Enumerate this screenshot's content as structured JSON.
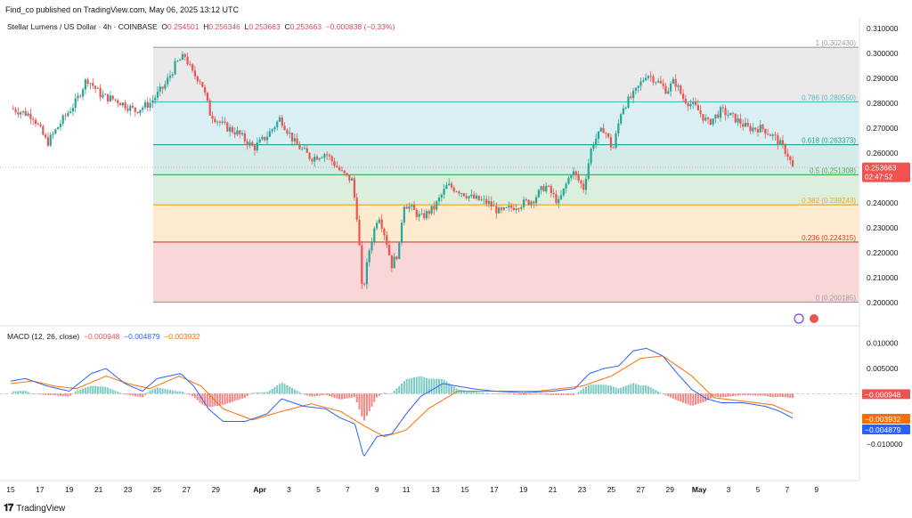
{
  "header": {
    "published": "Find_co published on TradingView.com, May 06, 2025 13:12 UTC",
    "symbol": "Stellar Lumens / US Dollar · 4h · COINBASE",
    "open_label": "O",
    "open": "0.254501",
    "high_label": "H",
    "high": "0.256346",
    "low_label": "L",
    "low": "0.253663",
    "close_label": "C",
    "close": "0.253663",
    "change": "−0.000838 (−0.33%)"
  },
  "macd_legend": {
    "name": "MACD (12, 26, close)",
    "hist": "−0.000948",
    "macd": "−0.004879",
    "signal": "−0.003932"
  },
  "footer": {
    "logo": "𝟏𝟕",
    "brand": "TradingView"
  },
  "colors": {
    "up": "#26a69a",
    "down": "#ef5350",
    "macd": "#2962ff",
    "signal": "#ff6d00",
    "fib1": "#9e9e9e",
    "fib786": "#56b7c9",
    "fib618": "#2a9d8f",
    "fib5": "#4caf50",
    "fib382": "#f5a623",
    "fib236": "#e53935",
    "fib0": "#9e9e9e"
  },
  "chart_data": [
    {
      "type": "candlestick",
      "title": "Stellar Lumens / US Dollar · 4h · COINBASE",
      "ylim": [
        0.2,
        0.31
      ],
      "y_ticks": [
        "0.310000",
        "0.300000",
        "0.290000",
        "0.280000",
        "0.270000",
        "0.260000",
        "0.250000",
        "0.240000",
        "0.230000",
        "0.220000",
        "0.210000",
        "0.200000"
      ],
      "x_ticks": [
        "15",
        "17",
        "19",
        "21",
        "23",
        "25",
        "27",
        "29",
        "Apr",
        "3",
        "5",
        "7",
        "9",
        "11",
        "13",
        "15",
        "17",
        "19",
        "21",
        "23",
        "25",
        "27",
        "29",
        "May",
        "3",
        "5",
        "7",
        "9"
      ],
      "last_price_label": "0.253663",
      "countdown_label": "02:47:52",
      "fib_levels": [
        {
          "ratio": "1",
          "value": 0.30243,
          "label": "1 (0.302430)"
        },
        {
          "ratio": "0.786",
          "value": 0.28055,
          "label": "0.786 (0.280550)"
        },
        {
          "ratio": "0.618",
          "value": 0.263373,
          "label": "0.618 (0.263373)"
        },
        {
          "ratio": "0.5",
          "value": 0.251308,
          "label": "0.5 (0.251308)"
        },
        {
          "ratio": "0.382",
          "value": 0.239243,
          "label": "0.382 (0.239243)"
        },
        {
          "ratio": "0.236",
          "value": 0.224315,
          "label": "0.236 (0.224315)"
        },
        {
          "ratio": "0",
          "value": 0.200185,
          "label": "0 (0.200185)"
        }
      ],
      "price_path": [
        {
          "x": 0,
          "p": 0.278
        },
        {
          "x": 1.5,
          "p": 0.275
        },
        {
          "x": 2.5,
          "p": 0.264
        },
        {
          "x": 3.5,
          "p": 0.273
        },
        {
          "x": 4.5,
          "p": 0.281
        },
        {
          "x": 5.2,
          "p": 0.29
        },
        {
          "x": 6.2,
          "p": 0.283
        },
        {
          "x": 7.3,
          "p": 0.281
        },
        {
          "x": 8.5,
          "p": 0.277
        },
        {
          "x": 9.5,
          "p": 0.28
        },
        {
          "x": 10.5,
          "p": 0.287
        },
        {
          "x": 11.3,
          "p": 0.296
        },
        {
          "x": 11.9,
          "p": 0.299
        },
        {
          "x": 12.4,
          "p": 0.292
        },
        {
          "x": 13,
          "p": 0.289
        },
        {
          "x": 13.6,
          "p": 0.276
        },
        {
          "x": 14.5,
          "p": 0.271
        },
        {
          "x": 15.5,
          "p": 0.268
        },
        {
          "x": 16.6,
          "p": 0.262
        },
        {
          "x": 17.5,
          "p": 0.267
        },
        {
          "x": 18.4,
          "p": 0.274
        },
        {
          "x": 19.4,
          "p": 0.264
        },
        {
          "x": 20.5,
          "p": 0.258
        },
        {
          "x": 21.5,
          "p": 0.26
        },
        {
          "x": 22.6,
          "p": 0.252
        },
        {
          "x": 23.3,
          "p": 0.249
        },
        {
          "x": 23.7,
          "p": 0.232
        },
        {
          "x": 24,
          "p": 0.203
        },
        {
          "x": 24.5,
          "p": 0.222
        },
        {
          "x": 25.1,
          "p": 0.236
        },
        {
          "x": 25.6,
          "p": 0.226
        },
        {
          "x": 26,
          "p": 0.215
        },
        {
          "x": 26.5,
          "p": 0.221
        },
        {
          "x": 26.8,
          "p": 0.24
        },
        {
          "x": 27.3,
          "p": 0.238
        },
        {
          "x": 28,
          "p": 0.234
        },
        {
          "x": 28.9,
          "p": 0.238
        },
        {
          "x": 29.8,
          "p": 0.247
        },
        {
          "x": 30.6,
          "p": 0.245
        },
        {
          "x": 31.5,
          "p": 0.242
        },
        {
          "x": 32.6,
          "p": 0.24
        },
        {
          "x": 33.4,
          "p": 0.236
        },
        {
          "x": 34.5,
          "p": 0.239
        },
        {
          "x": 35.6,
          "p": 0.241
        },
        {
          "x": 36.5,
          "p": 0.247
        },
        {
          "x": 37.4,
          "p": 0.24
        },
        {
          "x": 38.3,
          "p": 0.253
        },
        {
          "x": 39.1,
          "p": 0.246
        },
        {
          "x": 39.7,
          "p": 0.264
        },
        {
          "x": 40.5,
          "p": 0.27
        },
        {
          "x": 41.1,
          "p": 0.261
        },
        {
          "x": 41.7,
          "p": 0.278
        },
        {
          "x": 42.6,
          "p": 0.284
        },
        {
          "x": 43.4,
          "p": 0.292
        },
        {
          "x": 44.1,
          "p": 0.289
        },
        {
          "x": 44.8,
          "p": 0.285
        },
        {
          "x": 45.3,
          "p": 0.289
        },
        {
          "x": 45.9,
          "p": 0.282
        },
        {
          "x": 46.8,
          "p": 0.278
        },
        {
          "x": 47.6,
          "p": 0.272
        },
        {
          "x": 48.5,
          "p": 0.277
        },
        {
          "x": 49.4,
          "p": 0.274
        },
        {
          "x": 50.3,
          "p": 0.27
        },
        {
          "x": 51.3,
          "p": 0.27
        },
        {
          "x": 52.2,
          "p": 0.266
        },
        {
          "x": 53,
          "p": 0.26
        },
        {
          "x": 53.4,
          "p": 0.2537
        }
      ]
    },
    {
      "type": "macd",
      "title": "MACD (12, 26, close)",
      "ylim": [
        -0.013,
        0.011
      ],
      "y_ticks": [
        "0.010000",
        "0.005000",
        "0.000000",
        "−0.010000"
      ],
      "value_labels": [
        "−0.000948",
        "−0.003932",
        "−0.004879"
      ],
      "macd_path": [
        {
          "x": 0,
          "v": 0.0025
        },
        {
          "x": 1,
          "v": 0.003
        },
        {
          "x": 2.5,
          "v": 0.0015
        },
        {
          "x": 4,
          "v": 0.0005
        },
        {
          "x": 5.5,
          "v": 0.004
        },
        {
          "x": 6.5,
          "v": 0.005
        },
        {
          "x": 7.8,
          "v": 0.002
        },
        {
          "x": 9,
          "v": 0.0005
        },
        {
          "x": 10,
          "v": 0.003
        },
        {
          "x": 11.6,
          "v": 0.004
        },
        {
          "x": 12.5,
          "v": 0.0015
        },
        {
          "x": 13.5,
          "v": -0.003
        },
        {
          "x": 14.5,
          "v": -0.0055
        },
        {
          "x": 16,
          "v": -0.0055
        },
        {
          "x": 17.5,
          "v": -0.004
        },
        {
          "x": 18.5,
          "v": -0.001
        },
        {
          "x": 20,
          "v": -0.0025
        },
        {
          "x": 21.5,
          "v": -0.003
        },
        {
          "x": 22.5,
          "v": -0.0048
        },
        {
          "x": 23.5,
          "v": -0.006
        },
        {
          "x": 24.1,
          "v": -0.0125
        },
        {
          "x": 25,
          "v": -0.0085
        },
        {
          "x": 26,
          "v": -0.008
        },
        {
          "x": 27,
          "v": -0.004
        },
        {
          "x": 28,
          "v": -0.0005
        },
        {
          "x": 29.5,
          "v": 0.002
        },
        {
          "x": 31.5,
          "v": 0.001
        },
        {
          "x": 33,
          "v": 0.0005
        },
        {
          "x": 35,
          "v": 0.0002
        },
        {
          "x": 37,
          "v": 0.0005
        },
        {
          "x": 38.5,
          "v": 0.001
        },
        {
          "x": 39.5,
          "v": 0.004
        },
        {
          "x": 40.5,
          "v": 0.005
        },
        {
          "x": 41.5,
          "v": 0.0055
        },
        {
          "x": 42.5,
          "v": 0.0085
        },
        {
          "x": 43.4,
          "v": 0.009
        },
        {
          "x": 44.5,
          "v": 0.0075
        },
        {
          "x": 45.5,
          "v": 0.004
        },
        {
          "x": 46.5,
          "v": 0.0008
        },
        {
          "x": 47.5,
          "v": -0.001
        },
        {
          "x": 48.5,
          "v": -0.0018
        },
        {
          "x": 50,
          "v": -0.0018
        },
        {
          "x": 51.5,
          "v": -0.0025
        },
        {
          "x": 52.5,
          "v": -0.0035
        },
        {
          "x": 53.4,
          "v": -0.004879
        }
      ],
      "signal_path": [
        {
          "x": 0,
          "v": 0.002
        },
        {
          "x": 1.5,
          "v": 0.0025
        },
        {
          "x": 3,
          "v": 0.0015
        },
        {
          "x": 4.5,
          "v": 0.001
        },
        {
          "x": 6.5,
          "v": 0.0035
        },
        {
          "x": 8,
          "v": 0.002
        },
        {
          "x": 9.5,
          "v": 0.001
        },
        {
          "x": 11.5,
          "v": 0.0035
        },
        {
          "x": 13,
          "v": 0.0015
        },
        {
          "x": 14.5,
          "v": -0.003
        },
        {
          "x": 16.5,
          "v": -0.0052
        },
        {
          "x": 18.5,
          "v": -0.0035
        },
        {
          "x": 20.5,
          "v": -0.002
        },
        {
          "x": 22.5,
          "v": -0.0035
        },
        {
          "x": 24.2,
          "v": -0.0065
        },
        {
          "x": 25.5,
          "v": -0.0085
        },
        {
          "x": 27,
          "v": -0.0072
        },
        {
          "x": 28.5,
          "v": -0.003
        },
        {
          "x": 30.5,
          "v": 0.0005
        },
        {
          "x": 33,
          "v": 0.0005
        },
        {
          "x": 36,
          "v": 0.0005
        },
        {
          "x": 39,
          "v": 0.0015
        },
        {
          "x": 41,
          "v": 0.0035
        },
        {
          "x": 43,
          "v": 0.007
        },
        {
          "x": 44.5,
          "v": 0.0075
        },
        {
          "x": 46.5,
          "v": 0.0035
        },
        {
          "x": 48,
          "v": -0.0008
        },
        {
          "x": 50,
          "v": -0.0015
        },
        {
          "x": 52,
          "v": -0.0022
        },
        {
          "x": 53.4,
          "v": -0.003932
        }
      ]
    }
  ]
}
